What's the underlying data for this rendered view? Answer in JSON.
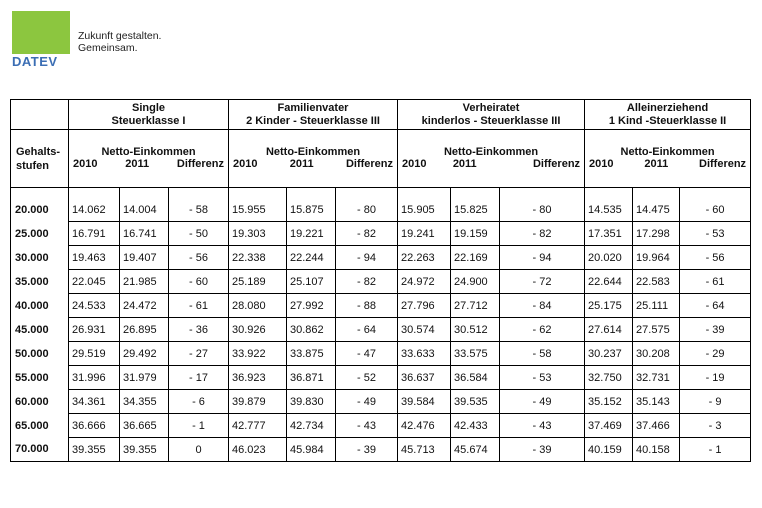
{
  "brand": {
    "logo_text": "DATEV",
    "slogan_line1": "Zukunft gestalten.",
    "slogan_line2": "Gemeinsam.",
    "logo_color": "#8cc63f",
    "text_color": "#3b6eb4"
  },
  "table": {
    "row_header_line1": "Gehalts-",
    "row_header_line2": "stufen",
    "groups": [
      {
        "line1": "Single",
        "line2": "Steuerklasse I"
      },
      {
        "line1": "Familienvater",
        "line2": "2 Kinder - Steuerklasse III"
      },
      {
        "line1": "Verheiratet",
        "line2": "kinderlos - Steuerklasse III"
      },
      {
        "line1": "Alleinerziehend",
        "line2": "1 Kind -Steuerklasse II"
      }
    ],
    "sub_header": {
      "netto": "Netto-Einkommen",
      "y2010": "2010",
      "y2011": "2011",
      "diff": "Differenz"
    },
    "rows": [
      {
        "stufe": "20.000",
        "cells": [
          "14.062",
          "14.004",
          "- 58",
          "15.955",
          "15.875",
          "- 80",
          "15.905",
          "15.825",
          "- 80",
          "14.535",
          "14.475",
          "- 60"
        ]
      },
      {
        "stufe": "25.000",
        "cells": [
          "16.791",
          "16.741",
          "- 50",
          "19.303",
          "19.221",
          "- 82",
          "19.241",
          "19.159",
          "- 82",
          "17.351",
          "17.298",
          "- 53"
        ]
      },
      {
        "stufe": "30.000",
        "cells": [
          "19.463",
          "19.407",
          "- 56",
          "22.338",
          "22.244",
          "- 94",
          "22.263",
          "22.169",
          "- 94",
          "20.020",
          "19.964",
          "- 56"
        ]
      },
      {
        "stufe": "35.000",
        "cells": [
          "22.045",
          "21.985",
          "- 60",
          "25.189",
          "25.107",
          "- 82",
          "24.972",
          "24.900",
          "- 72",
          "22.644",
          "22.583",
          "- 61"
        ]
      },
      {
        "stufe": "40.000",
        "cells": [
          "24.533",
          "24.472",
          "- 61",
          "28.080",
          "27.992",
          "- 88",
          "27.796",
          "27.712",
          "- 84",
          "25.175",
          "25.111",
          "- 64"
        ]
      },
      {
        "stufe": "45.000",
        "cells": [
          "26.931",
          "26.895",
          "- 36",
          "30.926",
          "30.862",
          "- 64",
          "30.574",
          "30.512",
          "- 62",
          "27.614",
          "27.575",
          "- 39"
        ]
      },
      {
        "stufe": "50.000",
        "cells": [
          "29.519",
          "29.492",
          "- 27",
          "33.922",
          "33.875",
          "- 47",
          "33.633",
          "33.575",
          "- 58",
          "30.237",
          "30.208",
          "- 29"
        ]
      },
      {
        "stufe": "55.000",
        "cells": [
          "31.996",
          "31.979",
          "- 17",
          "36.923",
          "36.871",
          "- 52",
          "36.637",
          "36.584",
          "- 53",
          "32.750",
          "32.731",
          "- 19"
        ]
      },
      {
        "stufe": "60.000",
        "cells": [
          "34.361",
          "34.355",
          "- 6",
          "39.879",
          "39.830",
          "- 49",
          "39.584",
          "39.535",
          "- 49",
          "35.152",
          "35.143",
          "- 9"
        ]
      },
      {
        "stufe": "65.000",
        "cells": [
          "36.666",
          "36.665",
          "- 1",
          "42.777",
          "42.734",
          "- 43",
          "42.476",
          "42.433",
          "- 43",
          "37.469",
          "37.466",
          "- 3"
        ]
      },
      {
        "stufe": "70.000",
        "cells": [
          "39.355",
          "39.355",
          "0",
          "46.023",
          "45.984",
          "- 39",
          "45.713",
          "45.674",
          "- 39",
          "40.159",
          "40.158",
          "- 1"
        ]
      }
    ]
  }
}
